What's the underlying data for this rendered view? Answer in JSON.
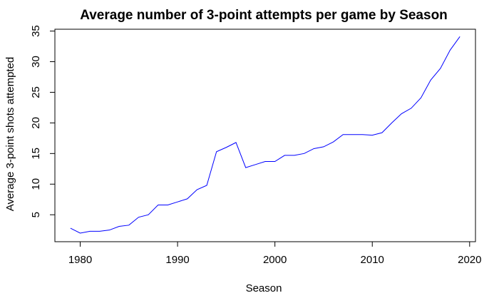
{
  "chart_data": {
    "type": "line",
    "title": "Average number of 3-point attempts per game by Season",
    "xlabel": "Season",
    "ylabel": "Average 3-point shots attempted",
    "xlim": [
      1977.4,
      2020.6
    ],
    "ylim": [
      0.6,
      35.3
    ],
    "xticks": [
      1980,
      1990,
      2000,
      2010,
      2020
    ],
    "yticks": [
      5,
      10,
      15,
      20,
      25,
      30,
      35
    ],
    "grid": false,
    "series": [
      {
        "color": "#0000ff",
        "x": [
          1979,
          1980,
          1981,
          1982,
          1983,
          1984,
          1985,
          1986,
          1987,
          1988,
          1989,
          1990,
          1991,
          1992,
          1993,
          1994,
          1995,
          1996,
          1997,
          1998,
          1999,
          2000,
          2001,
          2002,
          2003,
          2004,
          2005,
          2006,
          2007,
          2008,
          2009,
          2010,
          2011,
          2012,
          2013,
          2014,
          2015,
          2016,
          2017,
          2018,
          2019
        ],
        "y": [
          2.8,
          2.0,
          2.3,
          2.3,
          2.5,
          3.1,
          3.3,
          4.6,
          5.0,
          6.6,
          6.6,
          7.1,
          7.6,
          9.1,
          9.8,
          15.3,
          16.0,
          16.8,
          12.7,
          13.2,
          13.7,
          13.7,
          14.7,
          14.7,
          15.0,
          15.8,
          16.1,
          16.9,
          18.1,
          18.1,
          18.1,
          18.0,
          18.4,
          20.0,
          21.5,
          22.4,
          24.1,
          27.0,
          28.9,
          31.9,
          34.1
        ]
      }
    ]
  }
}
